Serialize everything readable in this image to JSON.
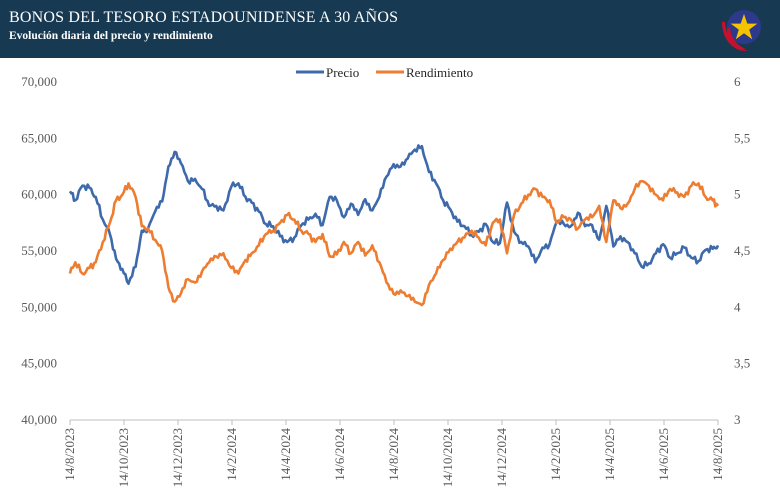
{
  "header": {
    "title": "BONOS DEL TESORO ESTADOUNIDENSE A 30 AÑOS",
    "subtitle": "Evolución diaria del precio y rendimiento",
    "background_color": "#173a52",
    "logo_icon": "star-emblem-icon"
  },
  "chart_data": {
    "type": "line",
    "x_type": "date",
    "x_range": [
      "2023-08-14",
      "2025-08-14"
    ],
    "x_tick_labels": [
      "14/8/2023",
      "14/10/2023",
      "14/12/2023",
      "14/2/2024",
      "14/4/2024",
      "14/6/2024",
      "14/8/2024",
      "14/10/2024",
      "14/12/2024",
      "14/2/2025",
      "14/4/2025",
      "14/6/2025",
      "14/8/2025"
    ],
    "y_left": {
      "min": 40000,
      "max": 70000,
      "ticks": [
        "40,000",
        "45,000",
        "50,000",
        "55,000",
        "60,000",
        "65,000",
        "70,000"
      ]
    },
    "y_right": {
      "min": 3,
      "max": 6,
      "ticks": [
        "3",
        "3,5",
        "4",
        "4,5",
        "5",
        "5,5",
        "6"
      ]
    },
    "grid": false,
    "legend_position": "top-center",
    "series": [
      {
        "name": "Precio",
        "axis": "left",
        "color": "#3e6aab",
        "x": [
          "2023-08-14",
          "2023-08-20",
          "2023-08-28",
          "2023-09-05",
          "2023-09-12",
          "2023-09-20",
          "2023-09-28",
          "2023-10-05",
          "2023-10-12",
          "2023-10-19",
          "2023-10-27",
          "2023-11-03",
          "2023-11-10",
          "2023-11-18",
          "2023-11-26",
          "2023-12-03",
          "2023-12-10",
          "2023-12-17",
          "2023-12-25",
          "2024-01-02",
          "2024-01-10",
          "2024-01-18",
          "2024-01-26",
          "2024-02-03",
          "2024-02-12",
          "2024-02-20",
          "2024-02-28",
          "2024-03-06",
          "2024-03-14",
          "2024-03-22",
          "2024-03-30",
          "2024-04-07",
          "2024-04-15",
          "2024-04-23",
          "2024-05-01",
          "2024-05-09",
          "2024-05-17",
          "2024-05-25",
          "2024-06-02",
          "2024-06-10",
          "2024-06-18",
          "2024-06-26",
          "2024-07-04",
          "2024-07-12",
          "2024-07-20",
          "2024-07-28",
          "2024-08-05",
          "2024-08-13",
          "2024-08-21",
          "2024-08-29",
          "2024-09-06",
          "2024-09-14",
          "2024-09-22",
          "2024-09-30",
          "2024-10-08",
          "2024-10-16",
          "2024-10-24",
          "2024-11-01",
          "2024-11-09",
          "2024-11-17",
          "2024-11-25",
          "2024-12-03",
          "2024-12-11",
          "2024-12-19",
          "2024-12-27",
          "2025-01-04",
          "2025-01-12",
          "2025-01-20",
          "2025-01-28",
          "2025-02-05",
          "2025-02-13",
          "2025-02-21",
          "2025-03-01",
          "2025-03-09",
          "2025-03-17",
          "2025-03-25",
          "2025-04-02",
          "2025-04-10",
          "2025-04-18",
          "2025-04-26",
          "2025-05-04",
          "2025-05-12",
          "2025-05-20",
          "2025-05-28",
          "2025-06-05",
          "2025-06-13",
          "2025-06-21",
          "2025-06-29",
          "2025-07-07",
          "2025-07-15",
          "2025-07-23",
          "2025-07-31",
          "2025-08-08",
          "2025-08-14"
        ],
        "values": [
          60300,
          59500,
          60800,
          60600,
          59800,
          57800,
          56500,
          54300,
          53400,
          52100,
          53600,
          56800,
          57000,
          58500,
          59400,
          62500,
          63800,
          62800,
          61200,
          61400,
          60500,
          59000,
          59000,
          58600,
          60700,
          61000,
          59800,
          59300,
          58500,
          57400,
          57200,
          56300,
          55800,
          56200,
          57300,
          57800,
          58300,
          57300,
          59800,
          59500,
          58000,
          59200,
          58200,
          59600,
          58600,
          59800,
          61600,
          62700,
          62500,
          63200,
          64000,
          64300,
          62000,
          61000,
          59500,
          58700,
          57600,
          57200,
          56400,
          56700,
          57400,
          55800,
          55700,
          59300,
          56700,
          55800,
          55400,
          54000,
          55300,
          55600,
          57600,
          57400,
          57200,
          58400,
          57200,
          57300,
          56000,
          59000,
          55400,
          56300,
          55800,
          54800,
          53600,
          53900,
          54800,
          55600,
          54400,
          54800,
          55300,
          54400,
          54100,
          55100,
          55200,
          55500
        ]
      },
      {
        "name": "Rendimiento",
        "axis": "right",
        "color": "#ed7d31",
        "x": [
          "2023-08-14",
          "2023-08-20",
          "2023-08-28",
          "2023-09-05",
          "2023-09-12",
          "2023-09-20",
          "2023-09-28",
          "2023-10-05",
          "2023-10-12",
          "2023-10-19",
          "2023-10-27",
          "2023-11-03",
          "2023-11-10",
          "2023-11-18",
          "2023-11-26",
          "2023-12-03",
          "2023-12-10",
          "2023-12-17",
          "2023-12-25",
          "2024-01-02",
          "2024-01-10",
          "2024-01-18",
          "2024-01-26",
          "2024-02-03",
          "2024-02-12",
          "2024-02-20",
          "2024-02-28",
          "2024-03-06",
          "2024-03-14",
          "2024-03-22",
          "2024-03-30",
          "2024-04-07",
          "2024-04-15",
          "2024-04-23",
          "2024-05-01",
          "2024-05-09",
          "2024-05-17",
          "2024-05-25",
          "2024-06-02",
          "2024-06-10",
          "2024-06-18",
          "2024-06-26",
          "2024-07-04",
          "2024-07-12",
          "2024-07-20",
          "2024-07-28",
          "2024-08-05",
          "2024-08-13",
          "2024-08-21",
          "2024-08-29",
          "2024-09-06",
          "2024-09-14",
          "2024-09-22",
          "2024-09-30",
          "2024-10-08",
          "2024-10-16",
          "2024-10-24",
          "2024-11-01",
          "2024-11-09",
          "2024-11-17",
          "2024-11-25",
          "2024-12-03",
          "2024-12-11",
          "2024-12-19",
          "2024-12-27",
          "2025-01-04",
          "2025-01-12",
          "2025-01-20",
          "2025-01-28",
          "2025-02-05",
          "2025-02-13",
          "2025-02-21",
          "2025-03-01",
          "2025-03-09",
          "2025-03-17",
          "2025-03-25",
          "2025-04-02",
          "2025-04-10",
          "2025-04-18",
          "2025-04-26",
          "2025-05-04",
          "2025-05-12",
          "2025-05-20",
          "2025-05-28",
          "2025-06-05",
          "2025-06-13",
          "2025-06-21",
          "2025-06-29",
          "2025-07-07",
          "2025-07-15",
          "2025-07-23",
          "2025-07-31",
          "2025-08-08",
          "2025-08-14"
        ],
        "values": [
          4.3,
          4.4,
          4.3,
          4.35,
          4.4,
          4.58,
          4.75,
          4.95,
          5.0,
          5.1,
          4.98,
          4.72,
          4.7,
          4.6,
          4.5,
          4.18,
          4.05,
          4.12,
          4.25,
          4.22,
          4.32,
          4.4,
          4.45,
          4.48,
          4.35,
          4.3,
          4.42,
          4.48,
          4.55,
          4.65,
          4.68,
          4.75,
          4.82,
          4.78,
          4.68,
          4.65,
          4.58,
          4.65,
          4.45,
          4.47,
          4.58,
          4.48,
          4.58,
          4.46,
          4.55,
          4.4,
          4.22,
          4.12,
          4.15,
          4.1,
          4.05,
          4.02,
          4.2,
          4.3,
          4.42,
          4.52,
          4.58,
          4.62,
          4.68,
          4.62,
          4.55,
          4.75,
          4.78,
          4.48,
          4.82,
          4.92,
          5.0,
          5.05,
          4.98,
          4.95,
          4.75,
          4.8,
          4.78,
          4.7,
          4.78,
          4.8,
          4.9,
          4.58,
          4.95,
          4.88,
          4.92,
          5.05,
          5.12,
          5.08,
          5.0,
          4.95,
          5.05,
          5.02,
          4.98,
          5.08,
          5.1,
          4.98,
          4.95,
          4.9
        ]
      }
    ]
  }
}
